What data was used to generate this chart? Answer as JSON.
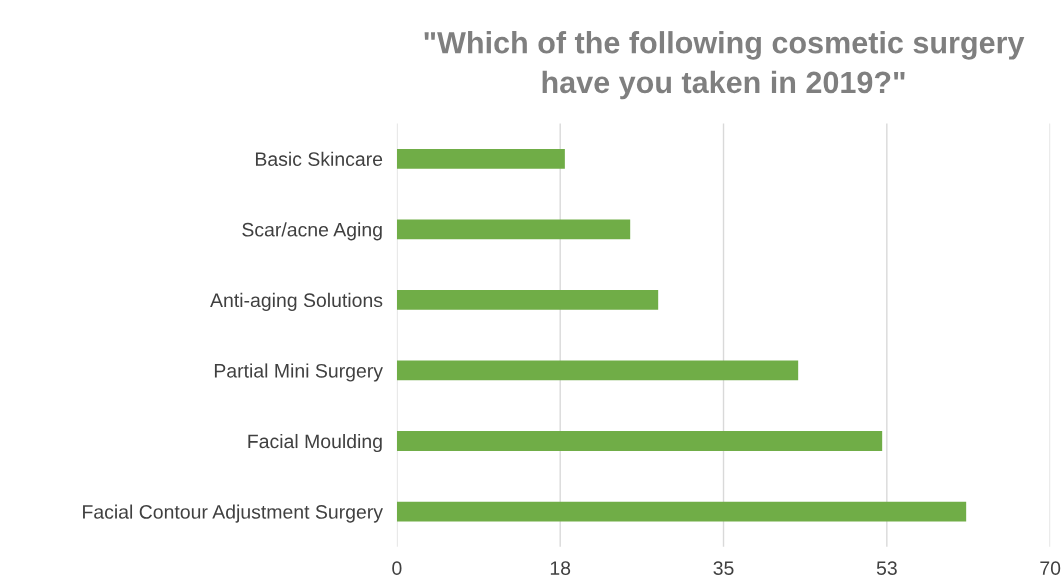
{
  "chart_data": {
    "type": "bar",
    "orientation": "horizontal",
    "title": "\"Which of the following cosmetic surgery\nhave you taken in 2019?\"",
    "categories": [
      "Basic Skincare",
      "Scar/acne Aging",
      "Anti-aging Solutions",
      "Partial Mini Surgery",
      "Facial Moulding",
      "Facial Contour Adjustment Surgery"
    ],
    "values": [
      18,
      25,
      28,
      43,
      52,
      61
    ],
    "color": "#70ad47",
    "xlim": [
      0,
      70
    ],
    "xticks": [
      0,
      {
        "value": 17.5,
        "label": "18"
      },
      35,
      {
        "value": 52.5,
        "label": "53"
      },
      70
    ],
    "grid": "x"
  }
}
